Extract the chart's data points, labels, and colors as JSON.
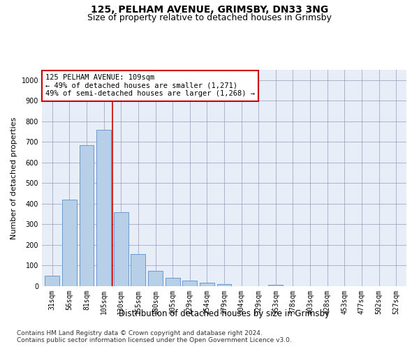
{
  "title1": "125, PELHAM AVENUE, GRIMSBY, DN33 3NG",
  "title2": "Size of property relative to detached houses in Grimsby",
  "xlabel": "Distribution of detached houses by size in Grimsby",
  "ylabel": "Number of detached properties",
  "footnote1": "Contains HM Land Registry data © Crown copyright and database right 2024.",
  "footnote2": "Contains public sector information licensed under the Open Government Licence v3.0.",
  "categories": [
    "31sqm",
    "56sqm",
    "81sqm",
    "105sqm",
    "130sqm",
    "155sqm",
    "180sqm",
    "205sqm",
    "229sqm",
    "254sqm",
    "279sqm",
    "304sqm",
    "329sqm",
    "353sqm",
    "378sqm",
    "403sqm",
    "428sqm",
    "453sqm",
    "477sqm",
    "502sqm",
    "527sqm"
  ],
  "values": [
    50,
    420,
    685,
    760,
    360,
    155,
    75,
    40,
    28,
    18,
    10,
    0,
    0,
    8,
    0,
    0,
    0,
    0,
    0,
    0,
    0
  ],
  "bar_color": "#b8cfe8",
  "bar_edge_color": "#5b8fc9",
  "red_line_x": 3.5,
  "annotation_text": "125 PELHAM AVENUE: 109sqm\n← 49% of detached houses are smaller (1,271)\n49% of semi-detached houses are larger (1,268) →",
  "annotation_box_color": "#ffffff",
  "annotation_box_edge": "#cc0000",
  "ylim": [
    0,
    1050
  ],
  "yticks": [
    0,
    100,
    200,
    300,
    400,
    500,
    600,
    700,
    800,
    900,
    1000
  ],
  "background_color": "#e8eef8",
  "grid_color": "#9999bb",
  "title1_fontsize": 10,
  "title2_fontsize": 9,
  "xlabel_fontsize": 8.5,
  "ylabel_fontsize": 8,
  "tick_fontsize": 7,
  "annotation_fontsize": 7.5,
  "footnote_fontsize": 6.5
}
